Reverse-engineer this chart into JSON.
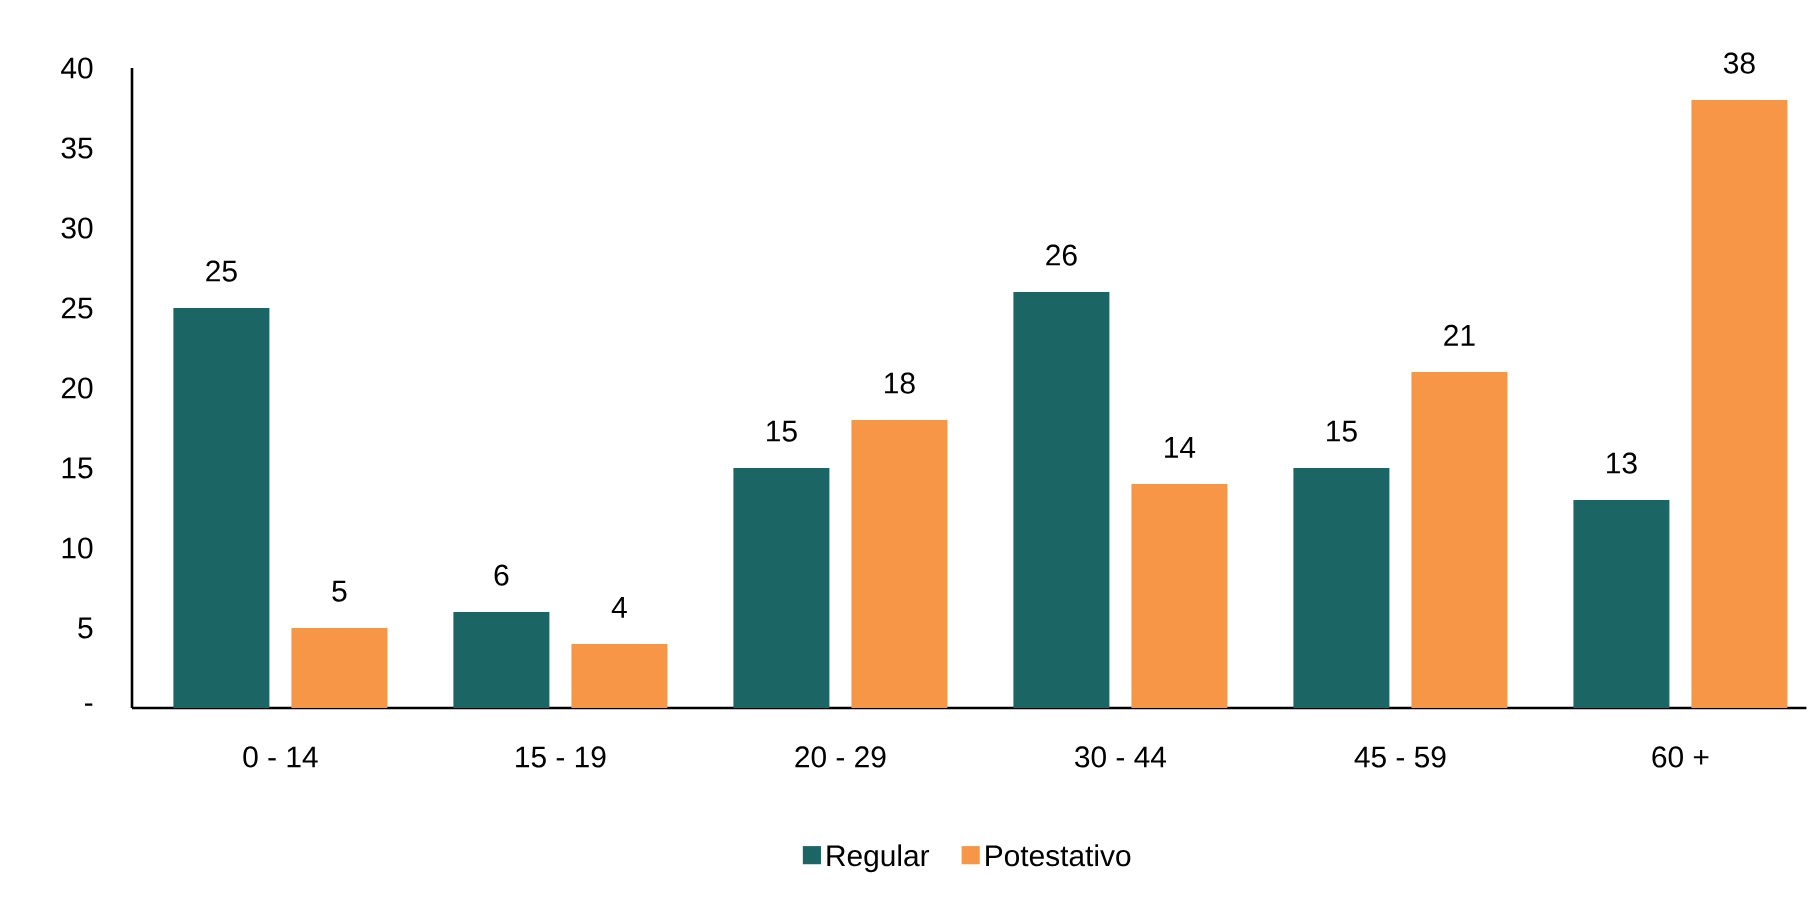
{
  "chart_data": {
    "type": "bar",
    "categories": [
      "0 - 14",
      "15 - 19",
      "20 - 29",
      "30 - 44",
      "45 - 59",
      "60 +"
    ],
    "series": [
      {
        "name": "Regular",
        "color": "#1b6565",
        "values": [
          25,
          6,
          15,
          26,
          15,
          13
        ]
      },
      {
        "name": "Potestativo",
        "color": "#f79646",
        "values": [
          5,
          4,
          18,
          14,
          21,
          38
        ]
      }
    ],
    "ylim": [
      0,
      40
    ],
    "yticks": [
      {
        "value": 0,
        "label": "-"
      },
      5,
      10,
      15,
      20,
      25,
      30,
      35,
      40
    ],
    "data_labels": true,
    "grid": false,
    "legend": "bottom"
  }
}
